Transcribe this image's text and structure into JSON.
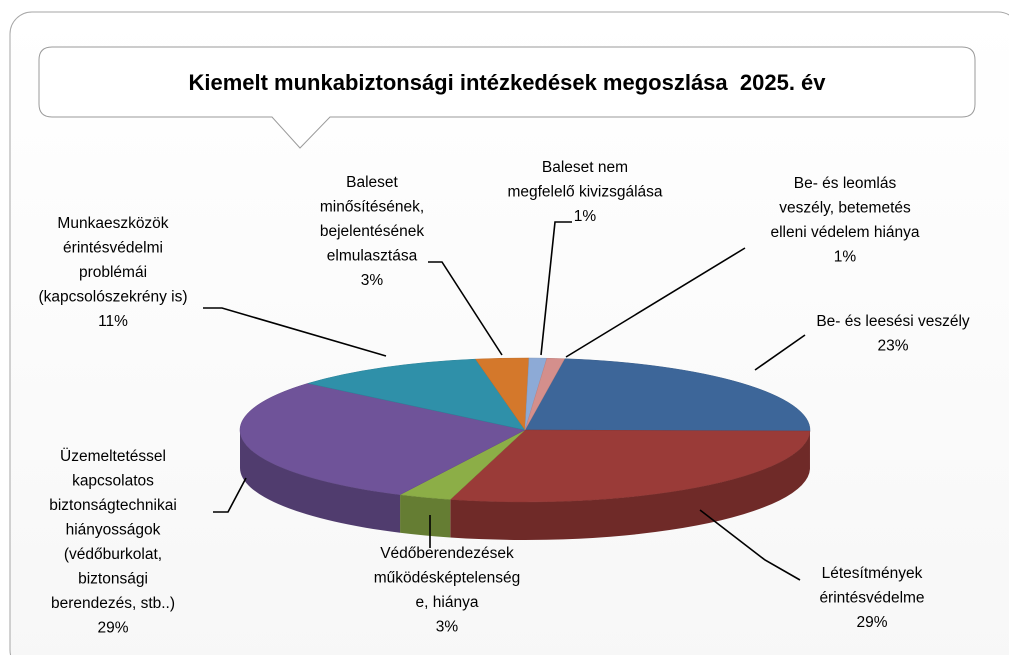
{
  "chart_data": {
    "type": "pie3d",
    "title": "Kiemelt munkabiztonsági intézkedések megoszlása  2025. év",
    "categories": [
      "Be- és leesési veszély",
      "Létesítmények\nérintésvédelme",
      "Védőberendezések\nműködésképtelenség\ne, hiánya",
      "Üzemeltetéssel\nkapcsolatos\nbiztonságtechnikai\nhiányosságok\n(védőburkolat,\nbiztonsági\nberendezés, stb..)",
      "Munkaeszközök\nérintésvédelmi\nproblémái\n(kapcsolószekrény is)",
      "Baleset\nminősítésének,\nbejelentésének\nelmulasztása",
      "Baleset nem\nmegfelelő kivizsgálása",
      "Be- és leomlás\nveszély, betemetés\nelleni védelem hiánya"
    ],
    "values": [
      23,
      29,
      3,
      29,
      11,
      3,
      1,
      1
    ],
    "value_labels": [
      "23%",
      "29%",
      "3%",
      "29%",
      "11%",
      "3%",
      "1%",
      "1%"
    ],
    "colors": [
      "#3d6699",
      "#9a3b38",
      "#8cae47",
      "#6f5399",
      "#2f90a9",
      "#d4782b",
      "#8daad6",
      "#d48f8c"
    ]
  }
}
